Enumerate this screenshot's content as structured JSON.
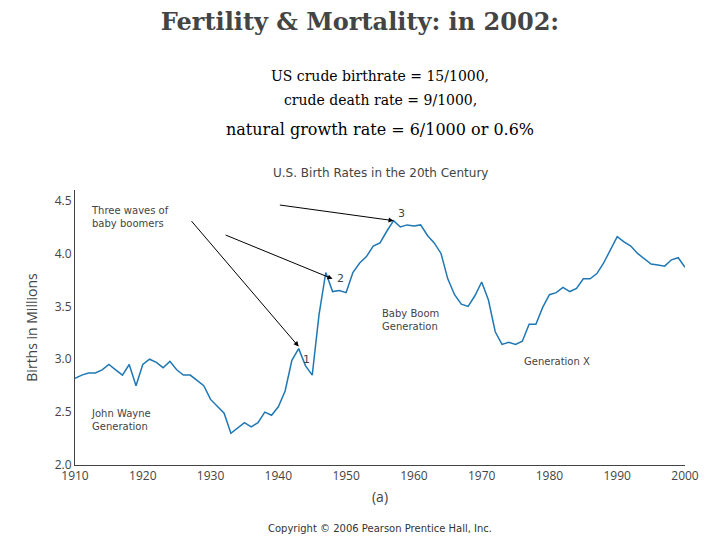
{
  "chart_data": {
    "type": "line",
    "title": "Fertility & Mortality: in 2002:",
    "subtitle": [
      "US crude birthrate = 15/1000,",
      "crude death rate = 9/1000,",
      "natural growth rate = 6/1000 or 0.6%"
    ],
    "chart_title": "U.S. Birth Rates in the 20th Century",
    "xlabel": "(a)",
    "ylabel": "Births in Millions",
    "copyright": "Copyright © 2006 Pearson Prentice Hall, Inc.",
    "annotations": [
      "John Wayne\nGeneration",
      "Three waves of\nbaby boomers",
      "1",
      "2",
      "3",
      "Baby Boom\nGeneration",
      "Generation X"
    ],
    "x": [
      1910,
      1911,
      1912,
      1913,
      1914,
      1915,
      1916,
      1917,
      1918,
      1919,
      1920,
      1921,
      1922,
      1923,
      1924,
      1925,
      1926,
      1927,
      1928,
      1929,
      1930,
      1931,
      1932,
      1933,
      1934,
      1935,
      1936,
      1937,
      1938,
      1939,
      1940,
      1941,
      1942,
      1943,
      1944,
      1945,
      1946,
      1947,
      1948,
      1949,
      1950,
      1951,
      1952,
      1953,
      1954,
      1955,
      1956,
      1957,
      1958,
      1959,
      1960,
      1961,
      1962,
      1963,
      1964,
      1965,
      1966,
      1967,
      1968,
      1969,
      1970,
      1971,
      1972,
      1973,
      1974,
      1975,
      1976,
      1977,
      1978,
      1979,
      1980,
      1981,
      1982,
      1983,
      1984,
      1985,
      1986,
      1987,
      1988,
      1989,
      1990,
      1991,
      1992,
      1993,
      1994,
      1995,
      1996,
      1997,
      1998,
      1999,
      2000
    ],
    "values": [
      2.82,
      2.85,
      2.87,
      2.87,
      2.9,
      2.95,
      2.9,
      2.85,
      2.95,
      2.75,
      2.95,
      3.0,
      2.97,
      2.92,
      2.98,
      2.9,
      2.85,
      2.85,
      2.8,
      2.75,
      2.62,
      2.55,
      2.49,
      2.3,
      2.35,
      2.4,
      2.36,
      2.4,
      2.5,
      2.47,
      2.55,
      2.7,
      2.99,
      3.1,
      2.94,
      2.85,
      3.42,
      3.82,
      3.64,
      3.65,
      3.63,
      3.82,
      3.91,
      3.97,
      4.07,
      4.1,
      4.21,
      4.31,
      4.25,
      4.27,
      4.26,
      4.27,
      4.17,
      4.1,
      4.0,
      3.76,
      3.61,
      3.52,
      3.5,
      3.6,
      3.73,
      3.56,
      3.26,
      3.14,
      3.16,
      3.14,
      3.17,
      3.33,
      3.33,
      3.49,
      3.61,
      3.63,
      3.68,
      3.64,
      3.67,
      3.76,
      3.76,
      3.81,
      3.91,
      4.04,
      4.16,
      4.11,
      4.07,
      4.0,
      3.95,
      3.9,
      3.89,
      3.88,
      3.94,
      3.96,
      3.87
    ],
    "xlim": [
      1910,
      2000
    ],
    "xticks": [
      1910,
      1920,
      1930,
      1940,
      1950,
      1960,
      1970,
      1980,
      1990,
      2000
    ],
    "ylim": [
      2.0,
      4.6
    ],
    "yticks": [
      {
        "value": 2,
        "label": "2.0"
      },
      2.5,
      {
        "value": 3,
        "label": "3.0"
      },
      3.5,
      {
        "value": 4,
        "label": "4.0"
      },
      4.5
    ],
    "grid": false
  }
}
